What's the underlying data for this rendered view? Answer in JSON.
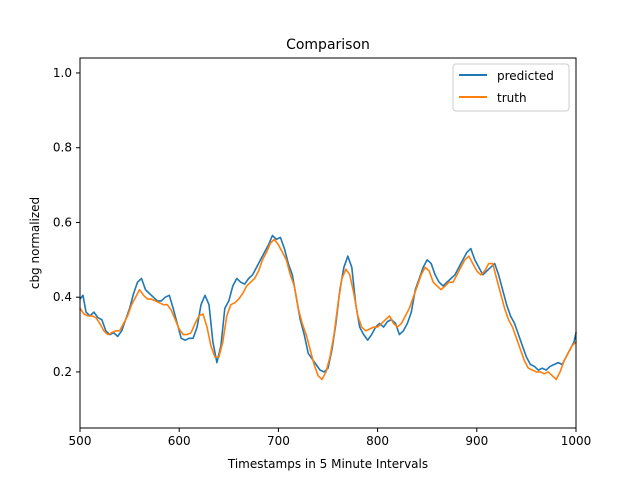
{
  "chart_data": {
    "type": "line",
    "title": "Comparison",
    "xlabel": "Timestamps in 5 Minute Intervals",
    "ylabel": "cbg normalized",
    "xlim": [
      500,
      1000
    ],
    "ylim": [
      0.05,
      1.04
    ],
    "xticks": [
      500,
      600,
      700,
      800,
      900,
      1000
    ],
    "yticks": [
      0.2,
      0.4,
      0.6,
      0.8,
      1.0
    ],
    "xtick_labels": [
      "500",
      "600",
      "700",
      "800",
      "900",
      "1000"
    ],
    "ytick_labels": [
      "0.2",
      "0.4",
      "0.6",
      "0.8",
      "1.0"
    ],
    "grid": false,
    "legend_position": "top-right",
    "series": [
      {
        "name": "predicted",
        "color": "#1f77b4",
        "points": [
          [
            500,
            0.395
          ],
          [
            503,
            0.405
          ],
          [
            506,
            0.36
          ],
          [
            510,
            0.35
          ],
          [
            514,
            0.36
          ],
          [
            518,
            0.345
          ],
          [
            522,
            0.34
          ],
          [
            526,
            0.31
          ],
          [
            530,
            0.3
          ],
          [
            534,
            0.305
          ],
          [
            538,
            0.295
          ],
          [
            542,
            0.31
          ],
          [
            546,
            0.34
          ],
          [
            550,
            0.37
          ],
          [
            554,
            0.41
          ],
          [
            558,
            0.44
          ],
          [
            562,
            0.45
          ],
          [
            566,
            0.42
          ],
          [
            570,
            0.41
          ],
          [
            574,
            0.4
          ],
          [
            578,
            0.39
          ],
          [
            582,
            0.39
          ],
          [
            586,
            0.4
          ],
          [
            590,
            0.405
          ],
          [
            594,
            0.37
          ],
          [
            598,
            0.33
          ],
          [
            602,
            0.29
          ],
          [
            606,
            0.285
          ],
          [
            610,
            0.29
          ],
          [
            614,
            0.29
          ],
          [
            618,
            0.32
          ],
          [
            622,
            0.38
          ],
          [
            626,
            0.405
          ],
          [
            630,
            0.38
          ],
          [
            634,
            0.28
          ],
          [
            638,
            0.225
          ],
          [
            642,
            0.27
          ],
          [
            646,
            0.37
          ],
          [
            650,
            0.39
          ],
          [
            654,
            0.43
          ],
          [
            658,
            0.45
          ],
          [
            662,
            0.44
          ],
          [
            666,
            0.435
          ],
          [
            670,
            0.45
          ],
          [
            674,
            0.46
          ],
          [
            678,
            0.48
          ],
          [
            682,
            0.5
          ],
          [
            686,
            0.52
          ],
          [
            690,
            0.54
          ],
          [
            694,
            0.565
          ],
          [
            698,
            0.555
          ],
          [
            702,
            0.56
          ],
          [
            706,
            0.53
          ],
          [
            710,
            0.49
          ],
          [
            714,
            0.46
          ],
          [
            718,
            0.4
          ],
          [
            722,
            0.34
          ],
          [
            726,
            0.3
          ],
          [
            730,
            0.25
          ],
          [
            734,
            0.235
          ],
          [
            738,
            0.22
          ],
          [
            742,
            0.205
          ],
          [
            746,
            0.2
          ],
          [
            750,
            0.21
          ],
          [
            754,
            0.26
          ],
          [
            758,
            0.33
          ],
          [
            762,
            0.42
          ],
          [
            766,
            0.48
          ],
          [
            770,
            0.51
          ],
          [
            774,
            0.48
          ],
          [
            778,
            0.38
          ],
          [
            782,
            0.32
          ],
          [
            786,
            0.3
          ],
          [
            790,
            0.285
          ],
          [
            794,
            0.3
          ],
          [
            798,
            0.32
          ],
          [
            802,
            0.33
          ],
          [
            806,
            0.32
          ],
          [
            810,
            0.335
          ],
          [
            814,
            0.34
          ],
          [
            818,
            0.33
          ],
          [
            822,
            0.3
          ],
          [
            826,
            0.31
          ],
          [
            830,
            0.33
          ],
          [
            834,
            0.36
          ],
          [
            838,
            0.42
          ],
          [
            842,
            0.45
          ],
          [
            846,
            0.48
          ],
          [
            850,
            0.5
          ],
          [
            854,
            0.49
          ],
          [
            858,
            0.46
          ],
          [
            862,
            0.44
          ],
          [
            866,
            0.43
          ],
          [
            870,
            0.44
          ],
          [
            874,
            0.45
          ],
          [
            878,
            0.46
          ],
          [
            882,
            0.48
          ],
          [
            886,
            0.5
          ],
          [
            890,
            0.52
          ],
          [
            894,
            0.53
          ],
          [
            898,
            0.5
          ],
          [
            902,
            0.48
          ],
          [
            906,
            0.46
          ],
          [
            910,
            0.47
          ],
          [
            914,
            0.48
          ],
          [
            918,
            0.49
          ],
          [
            922,
            0.46
          ],
          [
            926,
            0.42
          ],
          [
            930,
            0.38
          ],
          [
            934,
            0.35
          ],
          [
            938,
            0.33
          ],
          [
            942,
            0.3
          ],
          [
            946,
            0.27
          ],
          [
            950,
            0.24
          ],
          [
            954,
            0.22
          ],
          [
            958,
            0.215
          ],
          [
            962,
            0.205
          ],
          [
            966,
            0.21
          ],
          [
            970,
            0.205
          ],
          [
            974,
            0.215
          ],
          [
            978,
            0.22
          ],
          [
            982,
            0.225
          ],
          [
            986,
            0.22
          ],
          [
            990,
            0.24
          ],
          [
            994,
            0.26
          ],
          [
            998,
            0.28
          ],
          [
            1000,
            0.305
          ]
        ]
      },
      {
        "name": "truth",
        "color": "#ff7f0e",
        "points": [
          [
            500,
            0.37
          ],
          [
            504,
            0.355
          ],
          [
            508,
            0.35
          ],
          [
            512,
            0.35
          ],
          [
            516,
            0.345
          ],
          [
            520,
            0.33
          ],
          [
            524,
            0.31
          ],
          [
            528,
            0.3
          ],
          [
            532,
            0.305
          ],
          [
            536,
            0.31
          ],
          [
            540,
            0.31
          ],
          [
            544,
            0.33
          ],
          [
            548,
            0.35
          ],
          [
            552,
            0.38
          ],
          [
            556,
            0.4
          ],
          [
            560,
            0.42
          ],
          [
            564,
            0.405
          ],
          [
            568,
            0.395
          ],
          [
            572,
            0.395
          ],
          [
            576,
            0.39
          ],
          [
            580,
            0.385
          ],
          [
            584,
            0.38
          ],
          [
            588,
            0.38
          ],
          [
            592,
            0.365
          ],
          [
            596,
            0.34
          ],
          [
            600,
            0.315
          ],
          [
            604,
            0.3
          ],
          [
            608,
            0.3
          ],
          [
            612,
            0.305
          ],
          [
            616,
            0.33
          ],
          [
            620,
            0.35
          ],
          [
            624,
            0.355
          ],
          [
            628,
            0.32
          ],
          [
            632,
            0.27
          ],
          [
            636,
            0.24
          ],
          [
            640,
            0.24
          ],
          [
            644,
            0.28
          ],
          [
            648,
            0.35
          ],
          [
            652,
            0.38
          ],
          [
            656,
            0.385
          ],
          [
            660,
            0.395
          ],
          [
            664,
            0.41
          ],
          [
            668,
            0.43
          ],
          [
            672,
            0.44
          ],
          [
            676,
            0.45
          ],
          [
            680,
            0.47
          ],
          [
            684,
            0.5
          ],
          [
            688,
            0.52
          ],
          [
            692,
            0.545
          ],
          [
            696,
            0.555
          ],
          [
            700,
            0.54
          ],
          [
            704,
            0.52
          ],
          [
            708,
            0.5
          ],
          [
            712,
            0.46
          ],
          [
            716,
            0.43
          ],
          [
            720,
            0.37
          ],
          [
            724,
            0.33
          ],
          [
            728,
            0.3
          ],
          [
            732,
            0.26
          ],
          [
            736,
            0.22
          ],
          [
            740,
            0.19
          ],
          [
            744,
            0.18
          ],
          [
            748,
            0.2
          ],
          [
            752,
            0.24
          ],
          [
            756,
            0.3
          ],
          [
            760,
            0.38
          ],
          [
            764,
            0.45
          ],
          [
            768,
            0.475
          ],
          [
            772,
            0.46
          ],
          [
            776,
            0.41
          ],
          [
            780,
            0.35
          ],
          [
            784,
            0.32
          ],
          [
            788,
            0.31
          ],
          [
            792,
            0.315
          ],
          [
            796,
            0.32
          ],
          [
            800,
            0.32
          ],
          [
            804,
            0.33
          ],
          [
            808,
            0.34
          ],
          [
            812,
            0.35
          ],
          [
            816,
            0.33
          ],
          [
            820,
            0.32
          ],
          [
            824,
            0.33
          ],
          [
            828,
            0.35
          ],
          [
            832,
            0.37
          ],
          [
            836,
            0.4
          ],
          [
            840,
            0.43
          ],
          [
            844,
            0.46
          ],
          [
            848,
            0.48
          ],
          [
            852,
            0.47
          ],
          [
            856,
            0.44
          ],
          [
            860,
            0.43
          ],
          [
            864,
            0.42
          ],
          [
            868,
            0.43
          ],
          [
            872,
            0.44
          ],
          [
            876,
            0.44
          ],
          [
            880,
            0.46
          ],
          [
            884,
            0.48
          ],
          [
            888,
            0.5
          ],
          [
            892,
            0.51
          ],
          [
            896,
            0.49
          ],
          [
            900,
            0.47
          ],
          [
            904,
            0.46
          ],
          [
            908,
            0.47
          ],
          [
            912,
            0.49
          ],
          [
            916,
            0.49
          ],
          [
            920,
            0.45
          ],
          [
            924,
            0.41
          ],
          [
            928,
            0.37
          ],
          [
            932,
            0.34
          ],
          [
            936,
            0.32
          ],
          [
            940,
            0.29
          ],
          [
            944,
            0.26
          ],
          [
            948,
            0.23
          ],
          [
            952,
            0.21
          ],
          [
            956,
            0.205
          ],
          [
            960,
            0.2
          ],
          [
            964,
            0.2
          ],
          [
            968,
            0.195
          ],
          [
            972,
            0.2
          ],
          [
            976,
            0.19
          ],
          [
            980,
            0.18
          ],
          [
            984,
            0.2
          ],
          [
            988,
            0.23
          ],
          [
            992,
            0.25
          ],
          [
            996,
            0.27
          ],
          [
            1000,
            0.28
          ]
        ]
      }
    ]
  }
}
